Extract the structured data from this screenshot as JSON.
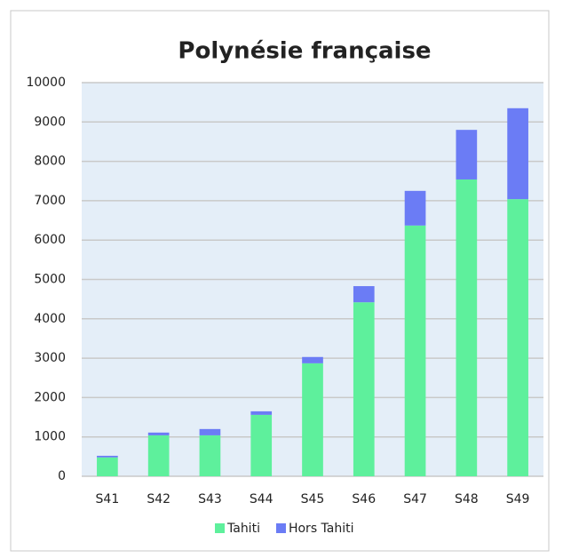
{
  "chart_data": {
    "type": "stacked_bar",
    "title": "Polynésie française",
    "categories": [
      "S41",
      "S42",
      "S43",
      "S44",
      "S45",
      "S46",
      "S47",
      "S48",
      "S49"
    ],
    "series": [
      {
        "name": "Tahiti",
        "color": "#5ef09c",
        "values": [
          480,
          1040,
          1040,
          1560,
          2870,
          4420,
          6370,
          7540,
          7040
        ]
      },
      {
        "name": "Hors Tahiti",
        "color": "#6b7cf5",
        "values": [
          40,
          70,
          160,
          90,
          160,
          410,
          880,
          1260,
          2310
        ]
      }
    ],
    "ylim": [
      0,
      10000
    ],
    "yticks": [
      0,
      1000,
      2000,
      3000,
      4000,
      5000,
      6000,
      7000,
      8000,
      9000,
      10000
    ],
    "grid": true,
    "legend": "bottom"
  }
}
